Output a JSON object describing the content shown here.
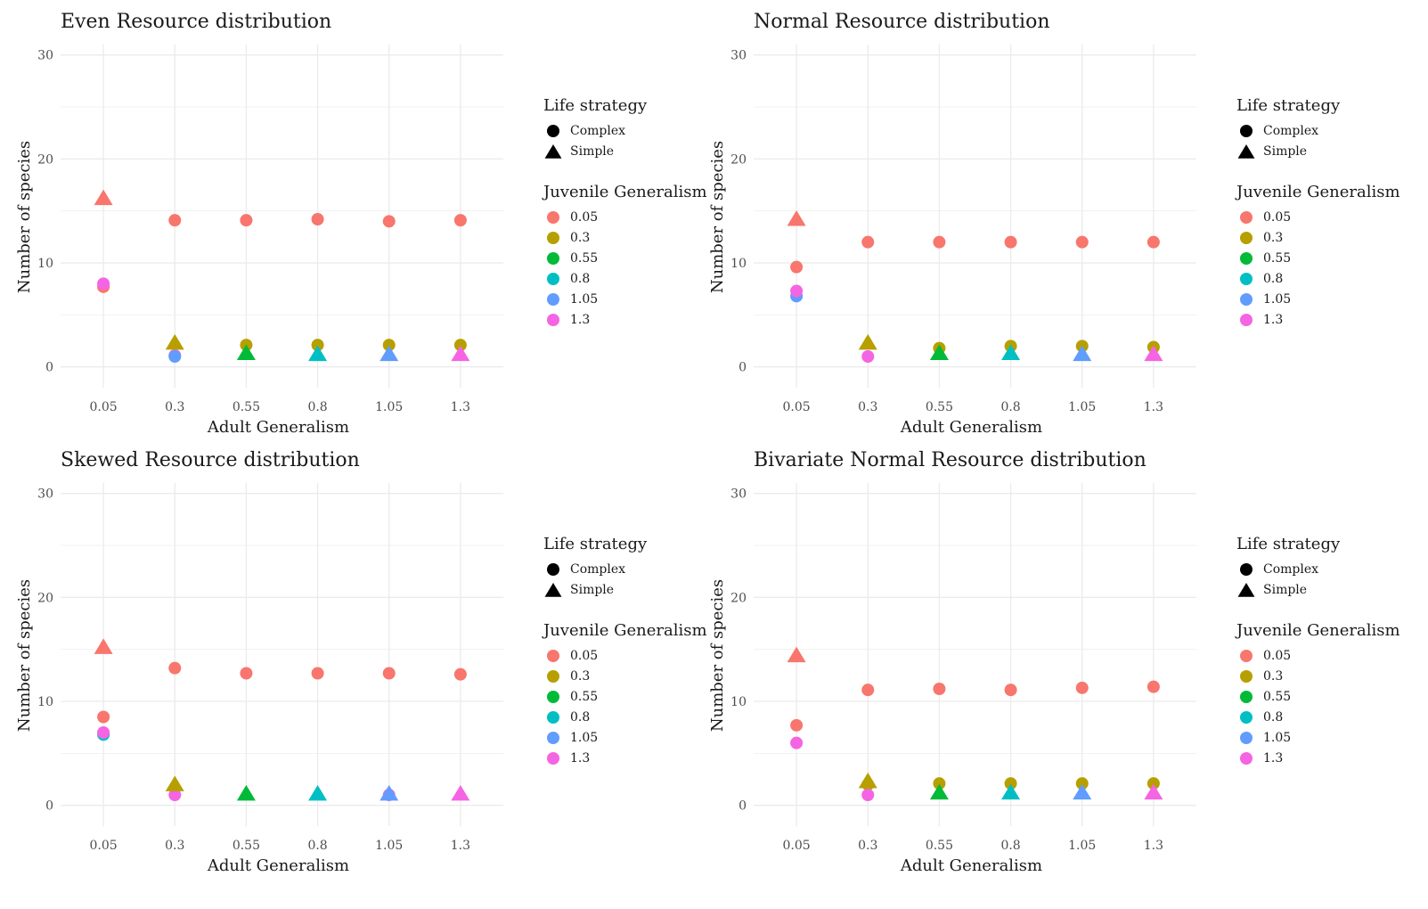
{
  "chart_data": [
    {
      "type": "scatter",
      "title": "Even Resource distribution",
      "xlabel": "Adult Generalism",
      "ylabel": "Number of species",
      "categories": [
        "0.05",
        "0.3",
        "0.55",
        "0.8",
        "1.05",
        "1.3"
      ],
      "ylim": [
        -2,
        31
      ],
      "yticks": [
        0,
        10,
        20,
        30
      ],
      "legend_shape_title": "Life strategy",
      "legend_color_title": "Juvenile Generalism",
      "series": [
        {
          "name": "Complex",
          "shape": "circle",
          "points": [
            {
              "x": "0.05",
              "jg": "0.05",
              "y": 7.7
            },
            {
              "x": "0.05",
              "jg": "1.3",
              "y": 8.0
            },
            {
              "x": "0.3",
              "jg": "0.05",
              "y": 14.1
            },
            {
              "x": "0.3",
              "jg": "1.3",
              "y": 1.1
            },
            {
              "x": "0.3",
              "jg": "1.05",
              "y": 1.0
            },
            {
              "x": "0.55",
              "jg": "0.05",
              "y": 14.1
            },
            {
              "x": "0.55",
              "jg": "0.3",
              "y": 2.1
            },
            {
              "x": "0.8",
              "jg": "0.05",
              "y": 14.2
            },
            {
              "x": "0.8",
              "jg": "0.3",
              "y": 2.1
            },
            {
              "x": "1.05",
              "jg": "0.05",
              "y": 14.0
            },
            {
              "x": "1.05",
              "jg": "0.3",
              "y": 2.1
            },
            {
              "x": "1.3",
              "jg": "0.05",
              "y": 14.1
            },
            {
              "x": "1.3",
              "jg": "0.3",
              "y": 2.1
            }
          ]
        },
        {
          "name": "Simple",
          "shape": "triangle",
          "points": [
            {
              "x": "0.05",
              "jg": "0.05",
              "y": 16.2
            },
            {
              "x": "0.3",
              "jg": "0.3",
              "y": 2.3
            },
            {
              "x": "0.55",
              "jg": "0.55",
              "y": 1.3
            },
            {
              "x": "0.8",
              "jg": "0.8",
              "y": 1.2
            },
            {
              "x": "1.05",
              "jg": "1.05",
              "y": 1.2
            },
            {
              "x": "1.3",
              "jg": "1.3",
              "y": 1.2
            }
          ]
        }
      ]
    },
    {
      "type": "scatter",
      "title": "Normal Resource distribution",
      "xlabel": "Adult Generalism",
      "ylabel": "Number of species",
      "categories": [
        "0.05",
        "0.3",
        "0.55",
        "0.8",
        "1.05",
        "1.3"
      ],
      "ylim": [
        -2,
        31
      ],
      "yticks": [
        0,
        10,
        20,
        30
      ],
      "legend_shape_title": "Life strategy",
      "legend_color_title": "Juvenile Generalism",
      "series": [
        {
          "name": "Complex",
          "shape": "circle",
          "points": [
            {
              "x": "0.05",
              "jg": "0.05",
              "y": 9.6
            },
            {
              "x": "0.05",
              "jg": "1.05",
              "y": 6.8
            },
            {
              "x": "0.05",
              "jg": "1.3",
              "y": 7.3
            },
            {
              "x": "0.3",
              "jg": "0.05",
              "y": 12.0
            },
            {
              "x": "0.3",
              "jg": "1.3",
              "y": 1.0
            },
            {
              "x": "0.55",
              "jg": "0.05",
              "y": 12.0
            },
            {
              "x": "0.55",
              "jg": "0.3",
              "y": 1.8
            },
            {
              "x": "0.8",
              "jg": "0.05",
              "y": 12.0
            },
            {
              "x": "0.8",
              "jg": "0.3",
              "y": 2.0
            },
            {
              "x": "1.05",
              "jg": "0.05",
              "y": 12.0
            },
            {
              "x": "1.05",
              "jg": "0.3",
              "y": 2.0
            },
            {
              "x": "1.3",
              "jg": "0.05",
              "y": 12.0
            },
            {
              "x": "1.3",
              "jg": "0.3",
              "y": 1.9
            }
          ]
        },
        {
          "name": "Simple",
          "shape": "triangle",
          "points": [
            {
              "x": "0.05",
              "jg": "0.05",
              "y": 14.2
            },
            {
              "x": "0.3",
              "jg": "0.3",
              "y": 2.3
            },
            {
              "x": "0.55",
              "jg": "0.55",
              "y": 1.3
            },
            {
              "x": "0.8",
              "jg": "0.8",
              "y": 1.3
            },
            {
              "x": "1.05",
              "jg": "1.05",
              "y": 1.2
            },
            {
              "x": "1.3",
              "jg": "1.3",
              "y": 1.2
            }
          ]
        }
      ]
    },
    {
      "type": "scatter",
      "title": "Skewed Resource distribution",
      "xlabel": "Adult Generalism",
      "ylabel": "Number of species",
      "categories": [
        "0.05",
        "0.3",
        "0.55",
        "0.8",
        "1.05",
        "1.3"
      ],
      "ylim": [
        -2,
        31
      ],
      "yticks": [
        0,
        10,
        20,
        30
      ],
      "legend_shape_title": "Life strategy",
      "legend_color_title": "Juvenile Generalism",
      "series": [
        {
          "name": "Complex",
          "shape": "circle",
          "points": [
            {
              "x": "0.05",
              "jg": "0.05",
              "y": 8.5
            },
            {
              "x": "0.05",
              "jg": "0.8",
              "y": 6.8
            },
            {
              "x": "0.05",
              "jg": "1.3",
              "y": 7.0
            },
            {
              "x": "0.3",
              "jg": "0.05",
              "y": 13.2
            },
            {
              "x": "0.3",
              "jg": "1.3",
              "y": 1.0
            },
            {
              "x": "0.55",
              "jg": "0.05",
              "y": 12.7
            },
            {
              "x": "0.8",
              "jg": "0.05",
              "y": 12.7
            },
            {
              "x": "1.05",
              "jg": "0.05",
              "y": 12.7
            },
            {
              "x": "1.05",
              "jg": "1.3",
              "y": 1.0
            },
            {
              "x": "1.3",
              "jg": "0.05",
              "y": 12.6
            }
          ]
        },
        {
          "name": "Simple",
          "shape": "triangle",
          "points": [
            {
              "x": "0.05",
              "jg": "0.05",
              "y": 15.2
            },
            {
              "x": "0.3",
              "jg": "0.3",
              "y": 2.0
            },
            {
              "x": "0.55",
              "jg": "0.55",
              "y": 1.1
            },
            {
              "x": "0.8",
              "jg": "0.8",
              "y": 1.1
            },
            {
              "x": "1.05",
              "jg": "1.05",
              "y": 1.1
            },
            {
              "x": "1.3",
              "jg": "1.3",
              "y": 1.1
            }
          ]
        }
      ]
    },
    {
      "type": "scatter",
      "title": "Bivariate Normal Resource distribution",
      "xlabel": "Adult Generalism",
      "ylabel": "Number of species",
      "categories": [
        "0.05",
        "0.3",
        "0.55",
        "0.8",
        "1.05",
        "1.3"
      ],
      "ylim": [
        -2,
        31
      ],
      "yticks": [
        0,
        10,
        20,
        30
      ],
      "legend_shape_title": "Life strategy",
      "legend_color_title": "Juvenile Generalism",
      "series": [
        {
          "name": "Complex",
          "shape": "circle",
          "points": [
            {
              "x": "0.05",
              "jg": "0.05",
              "y": 7.7
            },
            {
              "x": "0.05",
              "jg": "1.3",
              "y": 6.0
            },
            {
              "x": "0.3",
              "jg": "0.05",
              "y": 11.1
            },
            {
              "x": "0.3",
              "jg": "0.3",
              "y": 2.0
            },
            {
              "x": "0.3",
              "jg": "1.3",
              "y": 1.0
            },
            {
              "x": "0.55",
              "jg": "0.05",
              "y": 11.2
            },
            {
              "x": "0.55",
              "jg": "0.3",
              "y": 2.1
            },
            {
              "x": "0.8",
              "jg": "0.05",
              "y": 11.1
            },
            {
              "x": "0.8",
              "jg": "0.3",
              "y": 2.1
            },
            {
              "x": "1.05",
              "jg": "0.05",
              "y": 11.3
            },
            {
              "x": "1.05",
              "jg": "0.3",
              "y": 2.1
            },
            {
              "x": "1.3",
              "jg": "0.05",
              "y": 11.4
            },
            {
              "x": "1.3",
              "jg": "0.3",
              "y": 2.1
            }
          ]
        },
        {
          "name": "Simple",
          "shape": "triangle",
          "points": [
            {
              "x": "0.05",
              "jg": "0.05",
              "y": 14.4
            },
            {
              "x": "0.3",
              "jg": "0.3",
              "y": 2.3
            },
            {
              "x": "0.55",
              "jg": "0.55",
              "y": 1.2
            },
            {
              "x": "0.8",
              "jg": "0.8",
              "y": 1.2
            },
            {
              "x": "1.05",
              "jg": "1.05",
              "y": 1.2
            },
            {
              "x": "1.3",
              "jg": "1.3",
              "y": 1.2
            }
          ]
        }
      ]
    }
  ],
  "legend": {
    "shape_title": "Life strategy",
    "shapes": [
      {
        "label": "Complex",
        "shape": "circle"
      },
      {
        "label": "Simple",
        "shape": "triangle"
      }
    ],
    "color_title": "Juvenile Generalism",
    "colors": [
      {
        "label": "0.05",
        "color": "#F8766D"
      },
      {
        "label": "0.3",
        "color": "#B79F00"
      },
      {
        "label": "0.55",
        "color": "#00BA38"
      },
      {
        "label": "0.8",
        "color": "#00BFC4"
      },
      {
        "label": "1.05",
        "color": "#619CFF"
      },
      {
        "label": "1.3",
        "color": "#F564E3"
      }
    ]
  },
  "colors": {
    "grid": "#ebebeb",
    "tick_text": "#4d4d4d"
  }
}
